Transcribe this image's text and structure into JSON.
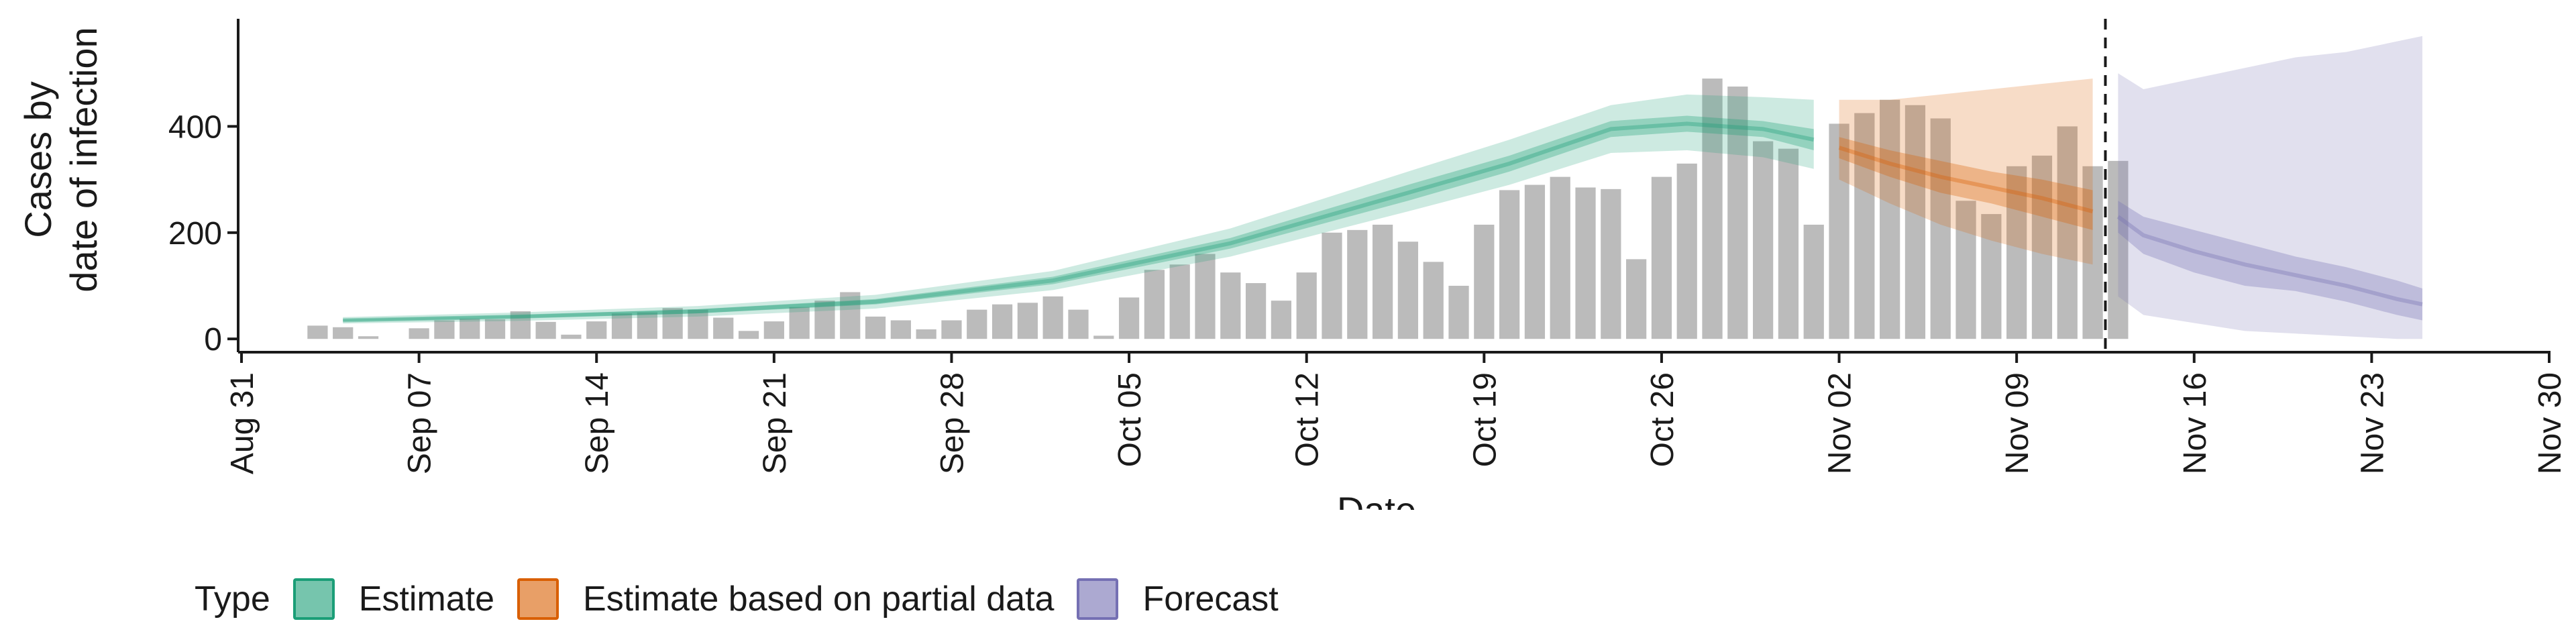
{
  "chart_data": {
    "type": "bar",
    "title": "",
    "ylabel": [
      "Cases by",
      "date of infection"
    ],
    "xlabel": "Date",
    "x_axis": {
      "type": "date",
      "range": [
        "2020-08-31",
        "2020-11-30"
      ],
      "tick_dates": [
        "2020-08-31",
        "2020-09-07",
        "2020-09-14",
        "2020-09-21",
        "2020-09-28",
        "2020-10-05",
        "2020-10-12",
        "2020-10-19",
        "2020-10-26",
        "2020-11-02",
        "2020-11-09",
        "2020-11-16",
        "2020-11-23",
        "2020-11-30"
      ],
      "tick_labels": [
        "Aug 31",
        "Sep 07",
        "Sep 14",
        "Sep 21",
        "Sep 28",
        "Oct 05",
        "Oct 12",
        "Oct 19",
        "Oct 26",
        "Nov 02",
        "Nov 09",
        "Nov 16",
        "Nov 23",
        "Nov 30"
      ]
    },
    "y_axis": {
      "range": [
        -25,
        600
      ],
      "ticks": [
        0,
        200,
        400
      ]
    },
    "grid": false,
    "reported_cases": {
      "start_date": "2020-09-03",
      "values": [
        25,
        22,
        5,
        0,
        20,
        35,
        38,
        37,
        52,
        32,
        8,
        33,
        48,
        50,
        58,
        55,
        40,
        15,
        33,
        60,
        72,
        88,
        42,
        35,
        18,
        35,
        55,
        65,
        68,
        80,
        55,
        6,
        78,
        130,
        140,
        160,
        125,
        105,
        72,
        125,
        200,
        205,
        215,
        183,
        145,
        100,
        215,
        280,
        290,
        305,
        285,
        282,
        150,
        305,
        330,
        490,
        475,
        372,
        358,
        215,
        405,
        425,
        450,
        440,
        415,
        260,
        235,
        325,
        345,
        400,
        325,
        335
      ]
    },
    "series": [
      {
        "name": "Estimate",
        "color": "#1b9e77",
        "x": [
          "2020-09-04",
          "2020-09-11",
          "2020-09-18",
          "2020-09-25",
          "2020-10-02",
          "2020-10-09",
          "2020-10-16",
          "2020-10-20",
          "2020-10-24",
          "2020-10-27",
          "2020-10-30",
          "2020-11-01"
        ],
        "median": [
          35,
          42,
          52,
          70,
          110,
          180,
          275,
          330,
          395,
          405,
          395,
          375
        ],
        "inner_low": [
          33,
          39,
          48,
          65,
          103,
          170,
          260,
          315,
          380,
          390,
          380,
          355
        ],
        "inner_high": [
          37,
          45,
          56,
          75,
          117,
          190,
          290,
          345,
          410,
          420,
          410,
          395
        ],
        "outer_low": [
          29,
          34,
          42,
          57,
          92,
          155,
          240,
          290,
          350,
          355,
          342,
          320
        ],
        "outer_high": [
          41,
          50,
          62,
          83,
          128,
          208,
          315,
          375,
          440,
          460,
          455,
          450
        ]
      },
      {
        "name": "Estimate based on partial data",
        "color": "#d95f02",
        "x": [
          "2020-11-02",
          "2020-11-04",
          "2020-11-06",
          "2020-11-08",
          "2020-11-10",
          "2020-11-12"
        ],
        "median": [
          360,
          330,
          305,
          285,
          265,
          240
        ],
        "inner_low": [
          340,
          305,
          275,
          255,
          230,
          205
        ],
        "inner_high": [
          380,
          355,
          335,
          315,
          300,
          280
        ],
        "outer_low": [
          300,
          255,
          215,
          185,
          160,
          140
        ],
        "outer_high": [
          450,
          450,
          460,
          470,
          480,
          490
        ]
      },
      {
        "name": "Forecast",
        "color": "#7570b3",
        "x": [
          "2020-11-13",
          "2020-11-14",
          "2020-11-16",
          "2020-11-18",
          "2020-11-20",
          "2020-11-22",
          "2020-11-24",
          "2020-11-25"
        ],
        "median": [
          230,
          195,
          165,
          140,
          120,
          100,
          75,
          65
        ],
        "inner_low": [
          200,
          160,
          125,
          100,
          90,
          70,
          45,
          35
        ],
        "inner_high": [
          260,
          230,
          205,
          180,
          155,
          135,
          110,
          95
        ],
        "outer_low": [
          80,
          45,
          30,
          15,
          10,
          5,
          0,
          0
        ],
        "outer_high": [
          500,
          470,
          490,
          510,
          530,
          540,
          560,
          570
        ]
      }
    ],
    "reference_line": {
      "date": "2020-11-12",
      "style": "dashed"
    },
    "legend": {
      "title": "Type",
      "position": "bottom",
      "items": [
        "Estimate",
        "Estimate based on partial data",
        "Forecast"
      ]
    }
  }
}
